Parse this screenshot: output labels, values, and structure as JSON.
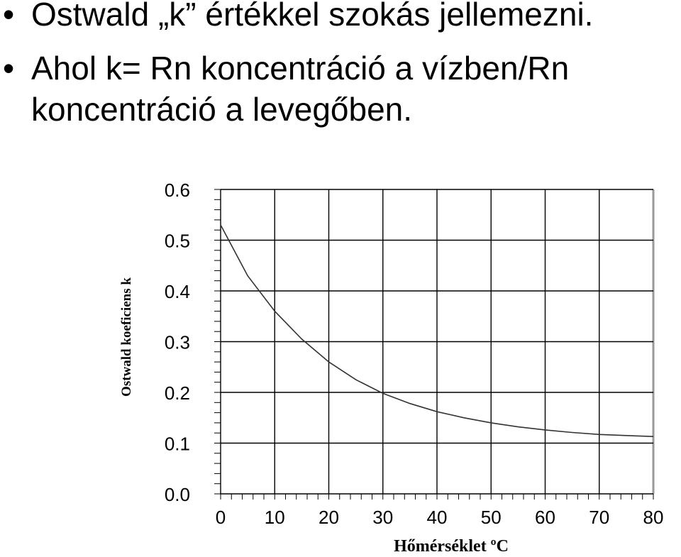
{
  "slide": {
    "bullet_marker": "•",
    "bullets": [
      "Ostwald „k” értékkel szokás jellemezni.",
      "Ahol k= Rn koncentráció a vízben/Rn",
      "koncentráció a levegőben."
    ]
  },
  "chart_data": {
    "type": "line",
    "title": "",
    "xlabel": "Hőmérséklet ºC",
    "ylabel": "Ostwald koeficiens  k",
    "xlim": [
      0,
      80
    ],
    "ylim": [
      0,
      0.6
    ],
    "xticks": [
      "0",
      "10",
      "20",
      "30",
      "40",
      "50",
      "60",
      "70",
      "80"
    ],
    "yticks": [
      "0.0",
      "0.1",
      "0.2",
      "0.3",
      "0.4",
      "0.5",
      "0.6"
    ],
    "grid": true,
    "series": [
      {
        "x": [
          0,
          5,
          10,
          15,
          20,
          25,
          30,
          35,
          40,
          45,
          50,
          55,
          60,
          65,
          70,
          75,
          80
        ],
        "y": [
          0.53,
          0.43,
          0.36,
          0.305,
          0.26,
          0.225,
          0.198,
          0.178,
          0.162,
          0.15,
          0.14,
          0.132,
          0.126,
          0.121,
          0.117,
          0.115,
          0.113
        ]
      }
    ]
  }
}
